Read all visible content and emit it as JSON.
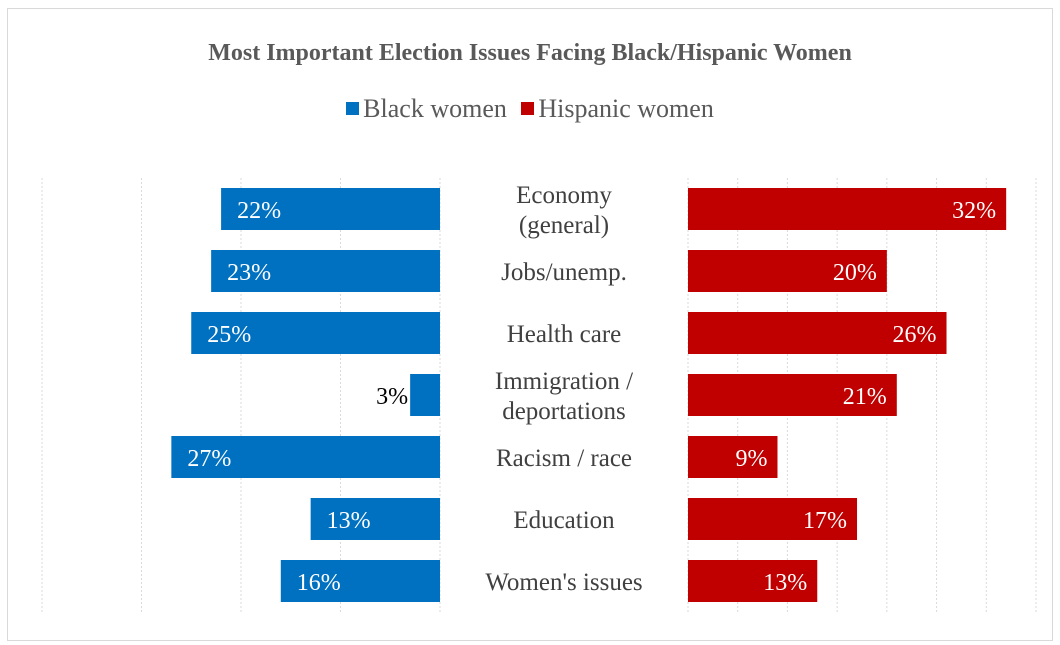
{
  "chart_data": {
    "type": "bar",
    "title": "Most Important Election Issues Facing Black/Hispanic Women",
    "categories": [
      "Economy (general)",
      "Jobs/unemp.",
      "Health care",
      "Immigration / deportations",
      "Racism / race",
      "Education",
      "Women's issues"
    ],
    "category_lines": [
      [
        "Economy",
        "(general)"
      ],
      [
        "Jobs/unemp."
      ],
      [
        "Health care"
      ],
      [
        "Immigration /",
        "deportations"
      ],
      [
        "Racism / race"
      ],
      [
        "Education"
      ],
      [
        "Women's issues"
      ]
    ],
    "series": [
      {
        "name": "Black women",
        "color": "#0070C0",
        "values": [
          22,
          23,
          25,
          3,
          27,
          13,
          16
        ],
        "labels": [
          "22%",
          "23%",
          "25%",
          "3%",
          "27%",
          "13%",
          "16%"
        ],
        "direction": "left"
      },
      {
        "name": "Hispanic women",
        "color": "#C00000",
        "values": [
          32,
          20,
          26,
          21,
          9,
          17,
          13
        ],
        "labels": [
          "32%",
          "20%",
          "26%",
          "21%",
          "9%",
          "17%",
          "13%"
        ],
        "direction": "right"
      }
    ],
    "xlim_left": [
      0,
      40
    ],
    "xlim_right": [
      0,
      35
    ],
    "grid": true,
    "legend_position": "top"
  }
}
